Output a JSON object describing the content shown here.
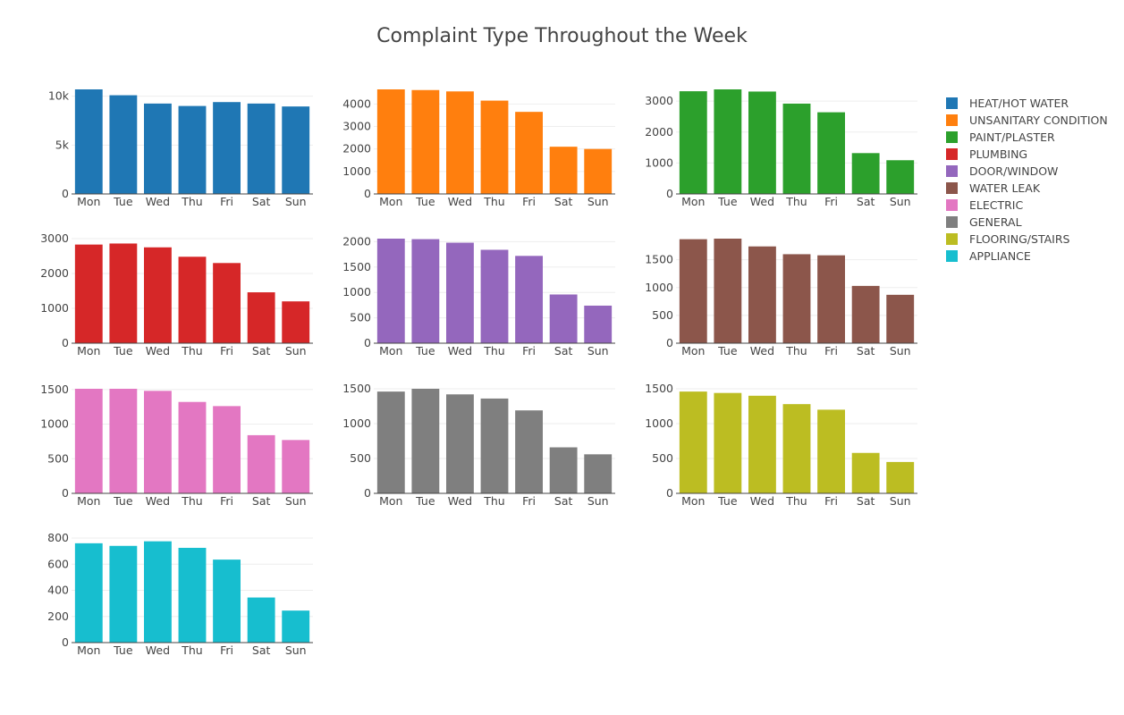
{
  "title": "Complaint Type Throughout the Week",
  "chart_data": {
    "type": "bar",
    "title": "Complaint Type Throughout the Week",
    "categories": [
      "Mon",
      "Tue",
      "Wed",
      "Thu",
      "Fri",
      "Sat",
      "Sun"
    ],
    "legend_position": "right",
    "series": [
      {
        "name": "HEAT/HOT WATER",
        "color": "#1f77b4",
        "values": [
          10700,
          10100,
          9250,
          9000,
          9400,
          9250,
          8950
        ],
        "ylim": [
          0,
          10700
        ],
        "yticks": [
          0,
          5000,
          10000
        ],
        "yticklabels": [
          "0",
          "5k",
          "10k"
        ]
      },
      {
        "name": "UNSANITARY CONDITION",
        "color": "#ff7f0e",
        "values": [
          4650,
          4620,
          4560,
          4150,
          3650,
          2100,
          2000
        ],
        "ylim": [
          0,
          4650
        ],
        "yticks": [
          0,
          1000,
          2000,
          3000,
          4000
        ],
        "yticklabels": [
          "0",
          "1000",
          "2000",
          "3000",
          "4000"
        ]
      },
      {
        "name": "PAINT/PLASTER",
        "color": "#2ca02c",
        "values": [
          3320,
          3380,
          3310,
          2920,
          2640,
          1320,
          1090
        ],
        "ylim": [
          0,
          3380
        ],
        "yticks": [
          0,
          1000,
          2000,
          3000
        ],
        "yticklabels": [
          "0",
          "1000",
          "2000",
          "3000"
        ]
      },
      {
        "name": "PLUMBING",
        "color": "#d62728",
        "values": [
          2830,
          2860,
          2750,
          2480,
          2300,
          1460,
          1200
        ],
        "ylim": [
          0,
          3000
        ],
        "yticks": [
          0,
          1000,
          2000,
          3000
        ],
        "yticklabels": [
          "0",
          "1000",
          "2000",
          "3000"
        ]
      },
      {
        "name": "DOOR/WINDOW",
        "color": "#9467bd",
        "values": [
          2060,
          2050,
          1980,
          1840,
          1720,
          960,
          740
        ],
        "ylim": [
          0,
          2060
        ],
        "yticks": [
          0,
          500,
          1000,
          1500,
          2000
        ],
        "yticklabels": [
          "0",
          "500",
          "1000",
          "1500",
          "2000"
        ]
      },
      {
        "name": "WATER LEAK",
        "color": "#8c564b",
        "values": [
          1870,
          1880,
          1740,
          1600,
          1580,
          1030,
          870
        ],
        "ylim": [
          0,
          1880
        ],
        "yticks": [
          0,
          500,
          1000,
          1500
        ],
        "yticklabels": [
          "0",
          "500",
          "1000",
          "1500"
        ]
      },
      {
        "name": "ELECTRIC",
        "color": "#e377c2",
        "values": [
          1510,
          1510,
          1480,
          1320,
          1260,
          840,
          770
        ],
        "ylim": [
          0,
          1510
        ],
        "yticks": [
          0,
          500,
          1000,
          1500
        ],
        "yticklabels": [
          "0",
          "500",
          "1000",
          "1500"
        ]
      },
      {
        "name": "GENERAL",
        "color": "#7f7f7f",
        "values": [
          1460,
          1500,
          1420,
          1360,
          1190,
          660,
          560
        ],
        "ylim": [
          0,
          1500
        ],
        "yticks": [
          0,
          500,
          1000,
          1500
        ],
        "yticklabels": [
          "0",
          "500",
          "1000",
          "1500"
        ]
      },
      {
        "name": "FLOORING/STAIRS",
        "color": "#bcbd22",
        "values": [
          1460,
          1440,
          1400,
          1280,
          1200,
          580,
          450
        ],
        "ylim": [
          0,
          1500
        ],
        "yticks": [
          0,
          500,
          1000,
          1500
        ],
        "yticklabels": [
          "0",
          "500",
          "1000",
          "1500"
        ]
      },
      {
        "name": "APPLIANCE",
        "color": "#17becf",
        "values": [
          760,
          740,
          775,
          725,
          635,
          345,
          245
        ],
        "ylim": [
          0,
          800
        ],
        "yticks": [
          0,
          200,
          400,
          600,
          800
        ],
        "yticklabels": [
          "0",
          "200",
          "400",
          "600",
          "800"
        ]
      }
    ]
  }
}
